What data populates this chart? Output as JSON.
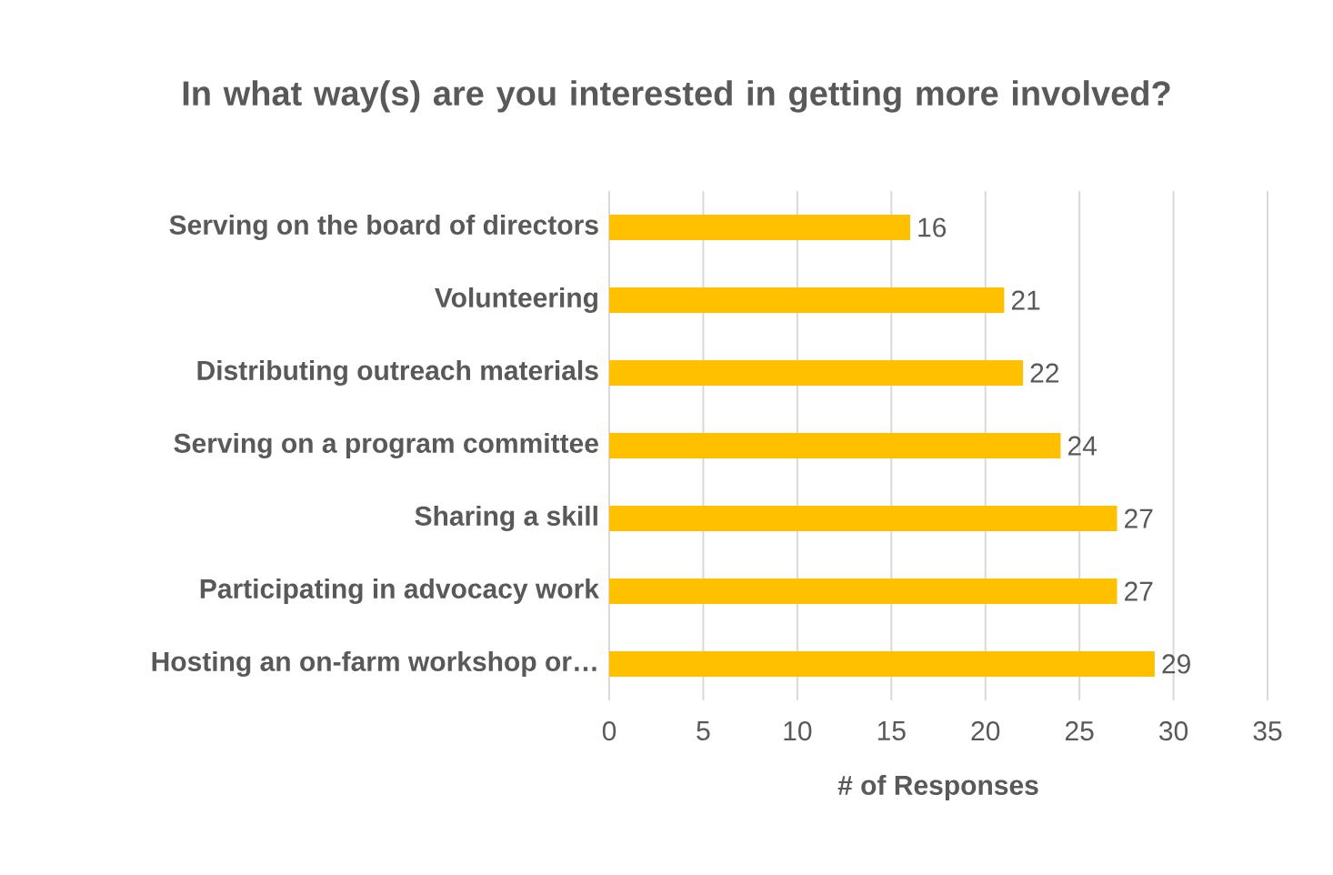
{
  "chart_data": {
    "type": "bar",
    "orientation": "horizontal",
    "title": "In what way(s) are you interested in getting more involved?",
    "xlabel": "# of Responses",
    "categories": [
      "Serving on the board of directors",
      "Volunteering",
      "Distributing outreach materials",
      "Serving on a program committee",
      "Sharing a skill",
      "Participating in advocacy work",
      "Hosting an on-farm workshop or…"
    ],
    "values": [
      16,
      21,
      22,
      24,
      27,
      27,
      29
    ],
    "color": "#ffc000",
    "xlim": [
      0,
      35
    ],
    "xticks": [
      0,
      5,
      10,
      15,
      20,
      25,
      30,
      35
    ],
    "grid": "x",
    "data_labels": true
  }
}
